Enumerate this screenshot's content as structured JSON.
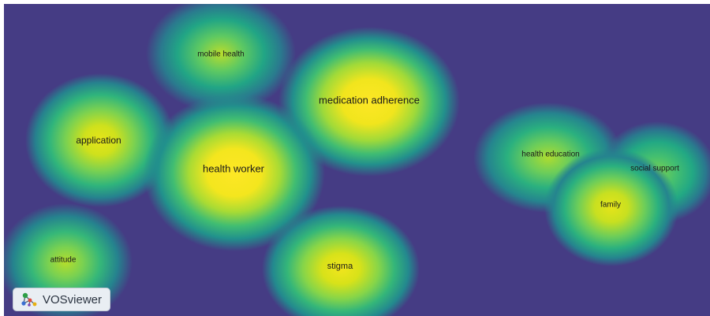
{
  "map": {
    "background_color": "#453c84",
    "terms": [
      {
        "label": "mobile health",
        "level": 0.58
      },
      {
        "label": "medication adherence",
        "level": 1.0
      },
      {
        "label": "application",
        "level": 0.78
      },
      {
        "label": "health worker",
        "level": 1.0
      },
      {
        "label": "health education",
        "level": 0.6
      },
      {
        "label": "social support",
        "level": 0.5
      },
      {
        "label": "family",
        "level": 0.8
      },
      {
        "label": "attitude",
        "level": 0.6
      },
      {
        "label": "stigma",
        "level": 0.82
      }
    ]
  },
  "badge": {
    "label": "VOSviewer",
    "icon": "vosviewer-logo-icon"
  }
}
